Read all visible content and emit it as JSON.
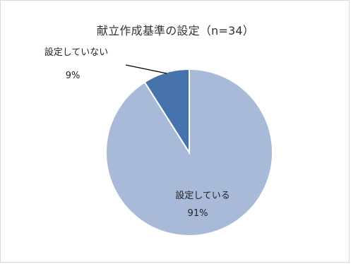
{
  "chart_data": {
    "type": "pie",
    "title": "献立作成基準の設定（n=34）",
    "slices": [
      {
        "label": "設定している",
        "value": 91,
        "color": "#a9b9d8"
      },
      {
        "label": "設定していない",
        "value": 9,
        "color": "#4673ab"
      }
    ],
    "data_labels": [
      {
        "name": "設定している",
        "percent": "91%"
      },
      {
        "name": "設定していない",
        "percent": "9%"
      }
    ],
    "legend": "none"
  }
}
